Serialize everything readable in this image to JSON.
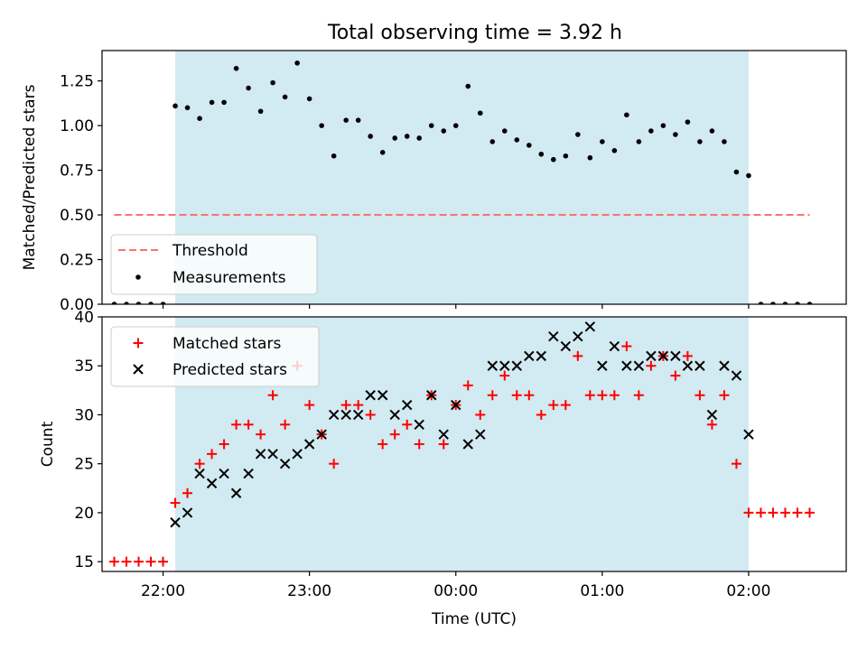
{
  "figure": {
    "title": "Total observing time = 3.92 h"
  },
  "chart_data": [
    {
      "type": "scatter",
      "title": "Total observing time = 3.92 h",
      "xlabel": "",
      "ylabel": "Matched/Predicted stars",
      "xlim": [
        "21:35",
        "02:40"
      ],
      "ylim": [
        0,
        1.42
      ],
      "yticks": [
        "0.00",
        "0.25",
        "0.50",
        "0.75",
        "1.00",
        "1.25"
      ],
      "grid": false,
      "legend_position": "lower-left",
      "shaded_region": {
        "start": "22:05",
        "end": "02:00",
        "color": "#add8e6"
      },
      "threshold": {
        "name": "Threshold",
        "y": 0.5,
        "x_start": "21:40",
        "x_end": "02:25",
        "color": "#ff7070",
        "style": "dashed"
      },
      "series": [
        {
          "name": "Measurements",
          "color": "#000000",
          "marker": "dot",
          "x": [
            "21:40",
            "21:45",
            "21:50",
            "21:55",
            "22:00",
            "22:05",
            "22:10",
            "22:15",
            "22:20",
            "22:25",
            "22:30",
            "22:35",
            "22:40",
            "22:45",
            "22:50",
            "22:55",
            "23:00",
            "23:05",
            "23:10",
            "23:15",
            "23:20",
            "23:25",
            "23:30",
            "23:35",
            "23:40",
            "23:45",
            "23:50",
            "23:55",
            "00:00",
            "00:05",
            "00:10",
            "00:15",
            "00:20",
            "00:25",
            "00:30",
            "00:35",
            "00:40",
            "00:45",
            "00:50",
            "00:55",
            "01:00",
            "01:05",
            "01:10",
            "01:15",
            "01:20",
            "01:25",
            "01:30",
            "01:35",
            "01:40",
            "01:45",
            "01:50",
            "01:55",
            "02:00",
            "02:05",
            "02:10",
            "02:15",
            "02:20",
            "02:25"
          ],
          "values": [
            0,
            0,
            0,
            0,
            0,
            1.11,
            1.1,
            1.04,
            1.13,
            1.13,
            1.32,
            1.21,
            1.08,
            1.24,
            1.16,
            1.35,
            1.15,
            1.0,
            0.83,
            1.03,
            1.03,
            0.94,
            0.85,
            0.93,
            0.94,
            0.93,
            1.0,
            0.97,
            1.0,
            1.22,
            1.07,
            0.91,
            0.97,
            0.92,
            0.89,
            0.84,
            0.81,
            0.83,
            0.95,
            0.82,
            0.91,
            0.86,
            1.06,
            0.91,
            0.97,
            1.0,
            0.95,
            1.02,
            0.91,
            0.97,
            0.91,
            0.74,
            0.72,
            0,
            0,
            0,
            0,
            0
          ]
        }
      ]
    },
    {
      "type": "scatter",
      "title": "",
      "xlabel": "Time (UTC)",
      "ylabel": "Count",
      "xlim": [
        "21:35",
        "02:40"
      ],
      "ylim": [
        14,
        40
      ],
      "xticks": [
        "22:00",
        "23:00",
        "00:00",
        "01:00",
        "02:00"
      ],
      "yticks": [
        "15",
        "20",
        "25",
        "30",
        "35",
        "40"
      ],
      "grid": false,
      "legend_position": "top-left",
      "shaded_region": {
        "start": "22:05",
        "end": "02:00",
        "color": "#add8e6"
      },
      "series": [
        {
          "name": "Matched stars",
          "color": "#ff0000",
          "marker": "plus",
          "x": [
            "21:40",
            "21:45",
            "21:50",
            "21:55",
            "22:00",
            "22:05",
            "22:10",
            "22:15",
            "22:20",
            "22:25",
            "22:30",
            "22:35",
            "22:40",
            "22:45",
            "22:50",
            "22:55",
            "23:00",
            "23:05",
            "23:10",
            "23:15",
            "23:20",
            "23:25",
            "23:30",
            "23:35",
            "23:40",
            "23:45",
            "23:50",
            "23:55",
            "00:00",
            "00:05",
            "00:10",
            "00:15",
            "00:20",
            "00:25",
            "00:30",
            "00:35",
            "00:40",
            "00:45",
            "00:50",
            "00:55",
            "01:00",
            "01:05",
            "01:10",
            "01:15",
            "01:20",
            "01:25",
            "01:30",
            "01:35",
            "01:40",
            "01:45",
            "01:50",
            "01:55",
            "02:00",
            "02:05",
            "02:10",
            "02:15",
            "02:20",
            "02:25"
          ],
          "values": [
            15,
            15,
            15,
            15,
            15,
            21,
            22,
            25,
            26,
            27,
            29,
            29,
            28,
            32,
            29,
            35,
            31,
            28,
            25,
            31,
            31,
            30,
            27,
            28,
            29,
            27,
            32,
            27,
            31,
            33,
            30,
            32,
            34,
            32,
            32,
            30,
            31,
            31,
            36,
            32,
            32,
            32,
            37,
            32,
            35,
            36,
            34,
            36,
            32,
            29,
            32,
            25,
            20,
            20,
            20,
            20,
            20,
            20
          ]
        },
        {
          "name": "Predicted stars",
          "color": "#000000",
          "marker": "cross",
          "x": [
            "22:05",
            "22:10",
            "22:15",
            "22:20",
            "22:25",
            "22:30",
            "22:35",
            "22:40",
            "22:45",
            "22:50",
            "22:55",
            "23:00",
            "23:05",
            "23:10",
            "23:15",
            "23:20",
            "23:25",
            "23:30",
            "23:35",
            "23:40",
            "23:45",
            "23:50",
            "23:55",
            "00:00",
            "00:05",
            "00:10",
            "00:15",
            "00:20",
            "00:25",
            "00:30",
            "00:35",
            "00:40",
            "00:45",
            "00:50",
            "00:55",
            "01:00",
            "01:05",
            "01:10",
            "01:15",
            "01:20",
            "01:25",
            "01:30",
            "01:35",
            "01:40",
            "01:45",
            "01:50",
            "01:55",
            "02:00"
          ],
          "values": [
            19,
            20,
            24,
            23,
            24,
            22,
            24,
            26,
            26,
            25,
            26,
            27,
            28,
            30,
            30,
            30,
            32,
            32,
            30,
            31,
            29,
            32,
            28,
            31,
            27,
            28,
            35,
            35,
            35,
            36,
            36,
            38,
            37,
            38,
            39,
            35,
            37,
            35,
            35,
            36,
            36,
            36,
            35,
            35,
            30,
            35,
            34,
            28
          ]
        }
      ]
    }
  ]
}
